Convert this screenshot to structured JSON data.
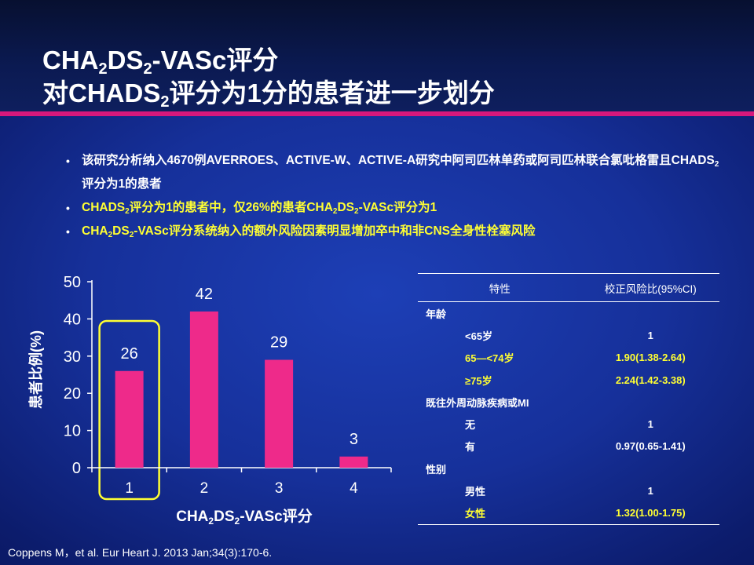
{
  "title": {
    "line1": {
      "a": "CHA",
      "s1": "2",
      "b": "DS",
      "s2": "2",
      "c": "-VASc评分"
    },
    "line2": {
      "a": "对CHADS",
      "s1": "2",
      "b": "评分为1分的患者进一步划分"
    }
  },
  "bullets": [
    {
      "text": "该研究分析纳入4670例AVERROES、ACTIVE-W、ACTIVE-A研究中阿司匹林单药或阿司匹林联合氯吡格雷且CHADS",
      "sub": "2",
      "tail": "评分为1的患者",
      "color": "white"
    },
    {
      "text": "CHADS",
      "sub": "2",
      "tail": "评分为1的患者中，仅26%的患者CHA",
      "sub2": "2",
      "tail2": "DS",
      "sub3": "2",
      "tail3": "-VASc评分为1",
      "color": "#ffff33"
    },
    {
      "text": "CHA",
      "sub": "2",
      "tail": "DS",
      "sub2": "2",
      "tail2": "-VASc评分系统纳入的额外风险因素明显增加卒中和非CNS全身性栓塞风险",
      "color": "#ffff33"
    }
  ],
  "chart_data": {
    "type": "bar",
    "categories": [
      "1",
      "2",
      "3",
      "4"
    ],
    "values": [
      26,
      42,
      29,
      3
    ],
    "data_labels": [
      "26",
      "42",
      "29",
      "3"
    ],
    "ylim": [
      0,
      50
    ],
    "yticks": [
      "0",
      "10",
      "20",
      "30",
      "40",
      "50"
    ],
    "xlabel": {
      "a": "CHA",
      "s1": "2",
      "b": "DS",
      "s2": "2",
      "c": "-VASc评分"
    },
    "ylabel": "患者比例(%)",
    "bar_color": "#ee2a8a",
    "highlight_color": "#ffff33",
    "highlight_category": "1",
    "grid": false
  },
  "table": {
    "headers": [
      "特性",
      "校正风险比(95%CI)"
    ],
    "rows": [
      {
        "label": "年龄",
        "value": "",
        "level": "category",
        "highlight": false
      },
      {
        "label": "<65岁",
        "value": "1",
        "level": "sub",
        "highlight": false
      },
      {
        "label": "65—<74岁",
        "value": "1.90(1.38-2.64)",
        "level": "sub",
        "highlight": true
      },
      {
        "label": "≥75岁",
        "value": "2.24(1.42-3.38)",
        "level": "sub",
        "highlight": true
      },
      {
        "label": "既往外周动脉疾病或MI",
        "value": "",
        "level": "category",
        "highlight": false
      },
      {
        "label": "无",
        "value": "1",
        "level": "sub",
        "highlight": false
      },
      {
        "label": "有",
        "value": "0.97(0.65-1.41)",
        "level": "sub",
        "highlight": false
      },
      {
        "label": "性别",
        "value": "",
        "level": "category",
        "highlight": false
      },
      {
        "label": "男性",
        "value": "1",
        "level": "sub",
        "highlight": false
      },
      {
        "label": "女性",
        "value": "1.32(1.00-1.75)",
        "level": "sub",
        "highlight": true
      }
    ]
  },
  "citation": "Coppens M，et al. Eur Heart J. 2013 Jan;34(3):170-6."
}
